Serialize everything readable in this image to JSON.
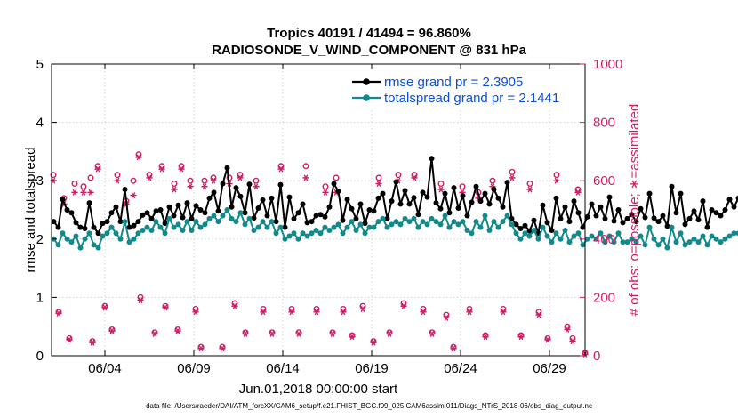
{
  "colors": {
    "rmse": "#000000",
    "spread": "#128a8c",
    "obs": "#cc1f66",
    "legend_text": "#0d4fd8",
    "axis": "#000000"
  },
  "footer": "data file: /Users/raeder/DAI/ATM_forcXX/CAM6_setup/f.e21.FHIST_BGC.f09_025.CAM6assim.011/Diags_NTrS_2018-06/obs_diag_output.nc",
  "chart_data": {
    "type": "line",
    "title": "Tropics 40191 / 41494 = 96.860%",
    "subtitle": "RADIOSONDE_V_WIND_COMPONENT @ 831 hPa",
    "xlabel": "Jun.01,2018 00:00:00 start",
    "ylabel": "rmse and totalspread",
    "ylabel_right": "# of obs: o=possible; ∗=assimilated",
    "xlim": [
      1.0,
      31.0
    ],
    "ylim": [
      0,
      5
    ],
    "ylim_right": [
      0,
      1000
    ],
    "x_ticks": [
      4,
      9,
      14,
      19,
      24,
      29
    ],
    "x_tick_labels": [
      "06/04",
      "06/09",
      "06/14",
      "06/19",
      "06/24",
      "06/29"
    ],
    "y_ticks": [
      0,
      1,
      2,
      3,
      4,
      5
    ],
    "y_ticks_right": [
      0,
      200,
      400,
      600,
      800,
      1000
    ],
    "grid": true,
    "legend": {
      "position": "top-right",
      "entries": [
        "rmse grand pr = 2.3905",
        "totalspread grand pr = 2.1441"
      ]
    },
    "start_day": 1.125,
    "step_days": 0.25,
    "series": [
      {
        "name": "rmse",
        "axis": "left",
        "values": [
          2.3,
          2.2,
          2.68,
          2.5,
          2.45,
          2.28,
          2.2,
          2.18,
          2.62,
          2.2,
          2.1,
          2.27,
          2.3,
          2.45,
          2.55,
          2.3,
          2.85,
          2.2,
          2.23,
          2.3,
          2.41,
          2.45,
          2.35,
          2.48,
          2.5,
          2.27,
          2.55,
          2.4,
          2.58,
          2.37,
          2.62,
          2.35,
          2.57,
          2.5,
          2.45,
          2.7,
          2.8,
          2.48,
          2.95,
          3.22,
          2.55,
          2.88,
          2.73,
          2.45,
          2.94,
          2.36,
          2.53,
          2.67,
          2.4,
          2.7,
          2.3,
          2.93,
          2.2,
          2.72,
          2.35,
          2.45,
          2.6,
          2.28,
          2.3,
          2.4,
          2.42,
          2.38,
          2.55,
          2.95,
          2.82,
          2.32,
          2.68,
          2.52,
          2.35,
          2.6,
          2.27,
          2.5,
          2.48,
          2.7,
          2.78,
          2.35,
          2.65,
          2.98,
          2.6,
          2.83,
          2.6,
          2.71,
          2.42,
          2.8,
          2.72,
          3.38,
          2.62,
          2.52,
          2.78,
          2.45,
          2.88,
          2.53,
          2.74,
          2.4,
          2.63,
          2.9,
          2.65,
          2.78,
          2.6,
          2.85,
          2.7,
          2.55,
          2.97,
          2.35,
          2.25,
          2.18,
          2.23,
          2.14,
          2.32,
          2.1,
          2.58,
          2.28,
          2.15,
          2.7,
          2.35,
          2.55,
          2.3,
          2.65,
          2.45,
          2.2,
          2.38,
          2.6,
          2.4,
          2.55,
          2.35,
          2.72,
          2.31,
          2.5,
          2.28,
          2.35,
          2.42,
          2.3,
          2.52,
          2.37,
          2.78,
          2.36,
          2.3,
          2.4,
          2.22,
          2.9,
          2.45,
          2.78,
          2.25,
          2.35,
          2.48,
          2.33,
          2.65,
          2.2,
          2.5,
          2.45,
          2.4,
          2.5,
          2.68,
          2.55,
          2.7,
          2.3,
          2.28,
          2.35,
          2.42,
          2.6,
          2.72,
          2.3,
          2.85,
          2.25,
          2.52,
          2.37,
          2.2,
          2.8,
          2.4,
          2.5,
          2.33,
          2.27,
          2.44,
          2.3,
          2.45,
          2.3,
          2.38,
          2.5,
          2.44,
          2.6,
          2.4,
          2.55,
          2.3,
          2.2,
          2.25,
          2.72,
          2.6,
          2.8,
          2.35,
          2.3,
          2.2,
          1.85,
          2.3,
          2.25,
          2.2,
          2.1,
          2.15,
          2.05,
          2.2
        ]
      },
      {
        "name": "totalspread",
        "axis": "left",
        "values": [
          2.0,
          1.9,
          2.1,
          2.0,
          1.95,
          2.05,
          1.85,
          2.0,
          2.1,
          1.9,
          1.85,
          2.05,
          2.1,
          2.2,
          2.1,
          2.0,
          2.3,
          1.95,
          2.0,
          2.1,
          2.15,
          2.2,
          2.15,
          2.3,
          2.2,
          2.1,
          2.35,
          2.2,
          2.25,
          2.15,
          2.3,
          2.15,
          2.3,
          2.2,
          2.25,
          2.35,
          2.4,
          2.3,
          2.4,
          2.5,
          2.35,
          2.3,
          2.45,
          2.25,
          2.35,
          2.15,
          2.2,
          2.3,
          2.2,
          2.3,
          2.1,
          2.2,
          2.0,
          2.05,
          2.1,
          2.0,
          2.1,
          2.05,
          2.1,
          2.15,
          2.1,
          2.2,
          2.15,
          2.2,
          2.25,
          2.1,
          2.2,
          2.3,
          2.15,
          2.25,
          2.1,
          2.2,
          2.2,
          2.3,
          2.35,
          2.2,
          2.25,
          2.3,
          2.25,
          2.35,
          2.3,
          2.35,
          2.2,
          2.3,
          2.25,
          2.35,
          2.3,
          2.25,
          2.4,
          2.2,
          2.3,
          2.25,
          2.3,
          2.15,
          2.1,
          2.3,
          2.2,
          2.4,
          2.15,
          2.3,
          2.2,
          2.3,
          2.4,
          2.25,
          2.1,
          2.0,
          2.1,
          2.05,
          2.15,
          2.0,
          2.2,
          2.05,
          1.95,
          2.1,
          2.0,
          2.15,
          1.95,
          2.05,
          2.1,
          1.9,
          2.0,
          2.05,
          2.0,
          2.1,
          1.95,
          2.05,
          1.95,
          2.1,
          1.95,
          1.95,
          2.0,
          1.95,
          2.05,
          1.9,
          2.2,
          2.0,
          1.9,
          2.0,
          1.85,
          2.2,
          1.95,
          2.1,
          1.9,
          1.95,
          2.0,
          1.95,
          2.05,
          1.9,
          2.05,
          2.0,
          1.95,
          2.0,
          2.05,
          2.1,
          2.1,
          1.95,
          2.0,
          1.95,
          2.05,
          2.1,
          2.25,
          2.0,
          2.15,
          1.95,
          2.0,
          1.95,
          1.9,
          2.1,
          1.95,
          2.0,
          1.9,
          1.9,
          1.95,
          1.95,
          1.95,
          2.0,
          1.95,
          2.05,
          1.95,
          2.1,
          1.95,
          2.1,
          1.95,
          1.9,
          2.0,
          2.1,
          2.05,
          2.25,
          2.0,
          2.0,
          1.95,
          1.85,
          2.05,
          2.0,
          1.95,
          1.9,
          1.95,
          1.9,
          1.95
        ]
      }
    ],
    "obs_counts": {
      "axis": "right",
      "points": [
        {
          "x": 1.1,
          "possible": 620,
          "assimilated": 600
        },
        {
          "x": 1.4,
          "possible": 150,
          "assimilated": 145
        },
        {
          "x": 1.7,
          "possible": 540,
          "assimilated": 520
        },
        {
          "x": 2.0,
          "possible": 60,
          "assimilated": 55
        },
        {
          "x": 2.3,
          "possible": 590,
          "assimilated": 560
        },
        {
          "x": 2.8,
          "possible": 580,
          "assimilated": 560
        },
        {
          "x": 3.2,
          "possible": 610,
          "assimilated": 560
        },
        {
          "x": 3.3,
          "possible": 50,
          "assimilated": 45
        },
        {
          "x": 3.6,
          "possible": 650,
          "assimilated": 640
        },
        {
          "x": 4.0,
          "possible": 170,
          "assimilated": 165
        },
        {
          "x": 4.4,
          "possible": 90,
          "assimilated": 85
        },
        {
          "x": 4.7,
          "possible": 620,
          "assimilated": 600
        },
        {
          "x": 5.2,
          "possible": 530,
          "assimilated": 520
        },
        {
          "x": 5.6,
          "possible": 600,
          "assimilated": 550
        },
        {
          "x": 5.9,
          "possible": 690,
          "assimilated": 680
        },
        {
          "x": 6.0,
          "possible": 200,
          "assimilated": 190
        },
        {
          "x": 6.5,
          "possible": 620,
          "assimilated": 610
        },
        {
          "x": 6.8,
          "possible": 80,
          "assimilated": 75
        },
        {
          "x": 7.2,
          "possible": 650,
          "assimilated": 640
        },
        {
          "x": 7.4,
          "possible": 170,
          "assimilated": 165
        },
        {
          "x": 7.9,
          "possible": 590,
          "assimilated": 570
        },
        {
          "x": 8.1,
          "possible": 90,
          "assimilated": 85
        },
        {
          "x": 8.3,
          "possible": 650,
          "assimilated": 640
        },
        {
          "x": 8.8,
          "possible": 600,
          "assimilated": 580
        },
        {
          "x": 9.1,
          "possible": 160,
          "assimilated": 150
        },
        {
          "x": 9.4,
          "possible": 30,
          "assimilated": 25
        },
        {
          "x": 9.6,
          "possible": 600,
          "assimilated": 580
        },
        {
          "x": 10.1,
          "possible": 610,
          "assimilated": 600
        },
        {
          "x": 10.6,
          "possible": 30,
          "assimilated": 25
        },
        {
          "x": 11.0,
          "possible": 610,
          "assimilated": 590
        },
        {
          "x": 11.3,
          "possible": 180,
          "assimilated": 170
        },
        {
          "x": 11.6,
          "possible": 620,
          "assimilated": 610
        },
        {
          "x": 11.9,
          "possible": 80,
          "assimilated": 75
        },
        {
          "x": 12.5,
          "possible": 600,
          "assimilated": 580
        },
        {
          "x": 12.9,
          "possible": 160,
          "assimilated": 150
        },
        {
          "x": 13.4,
          "possible": 80,
          "assimilated": 75
        },
        {
          "x": 13.9,
          "possible": 650,
          "assimilated": 640
        },
        {
          "x": 14.5,
          "possible": 160,
          "assimilated": 150
        },
        {
          "x": 14.9,
          "possible": 80,
          "assimilated": 75
        },
        {
          "x": 15.3,
          "possible": 650,
          "assimilated": 610
        },
        {
          "x": 15.9,
          "possible": 160,
          "assimilated": 150
        },
        {
          "x": 16.4,
          "possible": 580,
          "assimilated": 560
        },
        {
          "x": 16.8,
          "possible": 80,
          "assimilated": 75
        },
        {
          "x": 17.0,
          "possible": 610,
          "assimilated": 560
        },
        {
          "x": 17.4,
          "possible": 160,
          "assimilated": 150
        },
        {
          "x": 17.9,
          "possible": 70,
          "assimilated": 65
        },
        {
          "x": 18.5,
          "possible": 170,
          "assimilated": 160
        },
        {
          "x": 19.1,
          "possible": 50,
          "assimilated": 45
        },
        {
          "x": 19.4,
          "possible": 610,
          "assimilated": 590
        },
        {
          "x": 20.0,
          "possible": 80,
          "assimilated": 75
        },
        {
          "x": 20.5,
          "possible": 620,
          "assimilated": 600
        },
        {
          "x": 20.8,
          "possible": 180,
          "assimilated": 170
        },
        {
          "x": 21.4,
          "possible": 620,
          "assimilated": 610
        },
        {
          "x": 21.9,
          "possible": 160,
          "assimilated": 150
        },
        {
          "x": 22.4,
          "possible": 80,
          "assimilated": 75
        },
        {
          "x": 22.9,
          "possible": 590,
          "assimilated": 570
        },
        {
          "x": 23.2,
          "possible": 140,
          "assimilated": 130
        },
        {
          "x": 23.6,
          "possible": 30,
          "assimilated": 25
        },
        {
          "x": 24.1,
          "possible": 580,
          "assimilated": 560
        },
        {
          "x": 24.5,
          "possible": 160,
          "assimilated": 150
        },
        {
          "x": 25.0,
          "possible": 560,
          "assimilated": 540
        },
        {
          "x": 25.4,
          "possible": 70,
          "assimilated": 65
        },
        {
          "x": 25.8,
          "possible": 600,
          "assimilated": 580
        },
        {
          "x": 26.4,
          "possible": 160,
          "assimilated": 150
        },
        {
          "x": 26.9,
          "possible": 630,
          "assimilated": 610
        },
        {
          "x": 27.4,
          "possible": 70,
          "assimilated": 65
        },
        {
          "x": 27.9,
          "possible": 590,
          "assimilated": 570
        },
        {
          "x": 28.4,
          "possible": 150,
          "assimilated": 140
        },
        {
          "x": 28.9,
          "possible": 60,
          "assimilated": 55
        },
        {
          "x": 29.4,
          "possible": 620,
          "assimilated": 600
        },
        {
          "x": 30.0,
          "possible": 100,
          "assimilated": 90
        },
        {
          "x": 30.3,
          "possible": 60,
          "assimilated": 50
        },
        {
          "x": 30.6,
          "possible": 570,
          "assimilated": 560
        },
        {
          "x": 31.0,
          "possible": 10,
          "assimilated": 5
        }
      ]
    }
  }
}
